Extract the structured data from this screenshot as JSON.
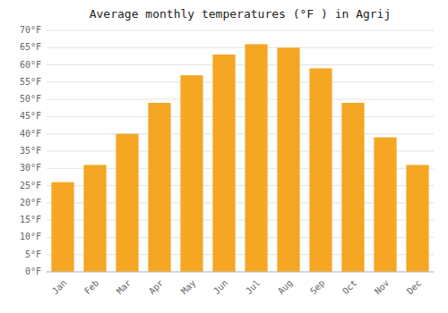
{
  "chart_data": {
    "type": "bar",
    "title": "Average monthly temperatures (°F ) in Agrij",
    "categories": [
      "Jan",
      "Feb",
      "Mar",
      "Apr",
      "May",
      "Jun",
      "Jul",
      "Aug",
      "Sep",
      "Oct",
      "Nov",
      "Dec"
    ],
    "values": [
      26,
      31,
      40,
      49,
      57,
      63,
      66,
      65,
      59,
      49,
      39,
      31
    ],
    "color": "#F5A623",
    "ylim": [
      0,
      70
    ],
    "yticks": [
      {
        "value": 0,
        "label": "0°F"
      },
      {
        "value": 5,
        "label": "5°F"
      },
      {
        "value": 10,
        "label": "10°F"
      },
      {
        "value": 15,
        "label": "15°F"
      },
      {
        "value": 20,
        "label": "20°F"
      },
      {
        "value": 25,
        "label": "25°F"
      },
      {
        "value": 30,
        "label": "30°F"
      },
      {
        "value": 35,
        "label": "35°F"
      },
      {
        "value": 40,
        "label": "40°F"
      },
      {
        "value": 45,
        "label": "45°F"
      },
      {
        "value": 50,
        "label": "50°F"
      },
      {
        "value": 55,
        "label": "55°F"
      },
      {
        "value": 60,
        "label": "60°F"
      },
      {
        "value": 65,
        "label": "65°F"
      },
      {
        "value": 70,
        "label": "70°F"
      }
    ],
    "grid": true
  }
}
